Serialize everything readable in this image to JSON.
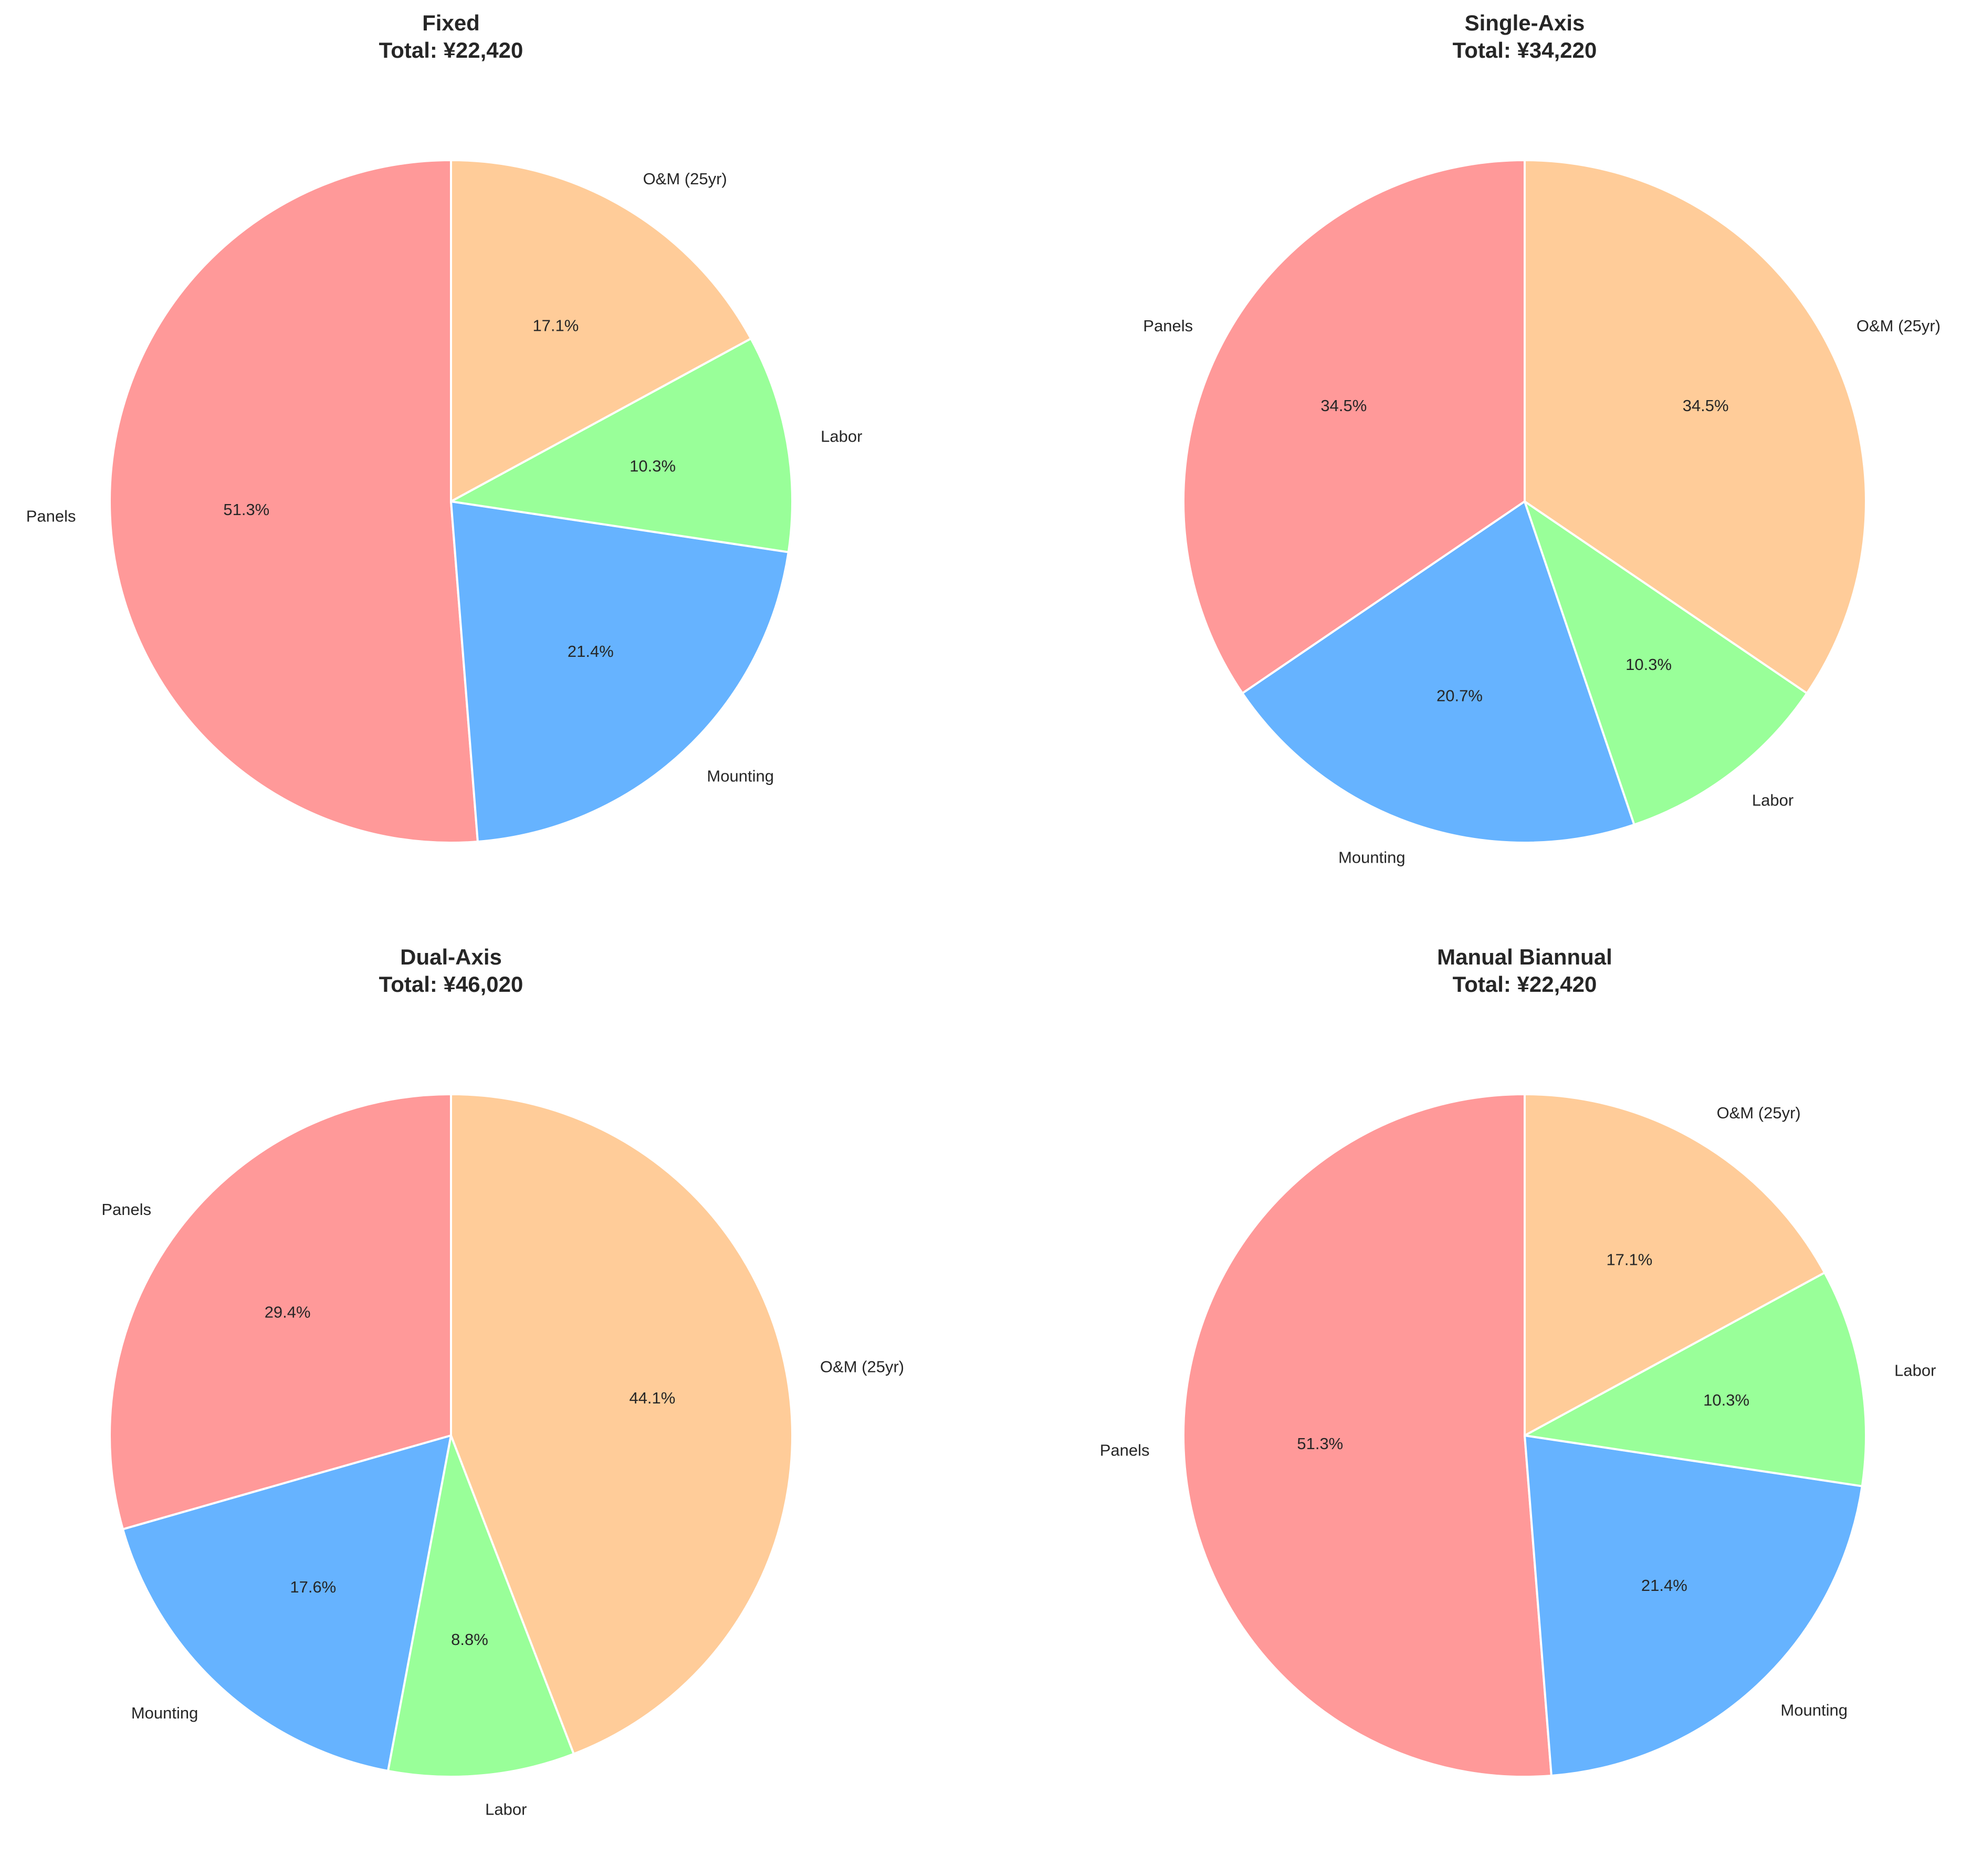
{
  "chart_data": [
    {
      "type": "pie",
      "title": "Fixed",
      "subtitle": "Total: ¥22,420",
      "categories": [
        "Panels",
        "Mounting",
        "Labor",
        "O&M (25yr)"
      ],
      "values": [
        51.3,
        21.4,
        10.3,
        17.1
      ],
      "value_labels": [
        "51.3%",
        "21.4%",
        "10.3%",
        "17.1%"
      ],
      "start_angle": 90,
      "direction": "counterclockwise"
    },
    {
      "type": "pie",
      "title": "Single-Axis",
      "subtitle": "Total: ¥34,220",
      "categories": [
        "Panels",
        "Mounting",
        "Labor",
        "O&M (25yr)"
      ],
      "values": [
        34.5,
        20.7,
        10.3,
        34.5
      ],
      "value_labels": [
        "34.5%",
        "20.7%",
        "10.3%",
        "34.5%"
      ],
      "start_angle": 90,
      "direction": "counterclockwise"
    },
    {
      "type": "pie",
      "title": "Dual-Axis",
      "subtitle": "Total: ¥46,020",
      "categories": [
        "Panels",
        "Mounting",
        "Labor",
        "O&M (25yr)"
      ],
      "values": [
        29.4,
        17.6,
        8.8,
        44.1
      ],
      "value_labels": [
        "29.4%",
        "17.6%",
        "8.8%",
        "44.1%"
      ],
      "start_angle": 90,
      "direction": "counterclockwise"
    },
    {
      "type": "pie",
      "title": "Manual Biannual",
      "subtitle": "Total: ¥22,420",
      "categories": [
        "Panels",
        "Mounting",
        "Labor",
        "O&M (25yr)"
      ],
      "values": [
        51.3,
        21.4,
        10.3,
        17.1
      ],
      "value_labels": [
        "51.3%",
        "21.4%",
        "10.3%",
        "17.1%"
      ],
      "start_angle": 90,
      "direction": "counterclockwise"
    }
  ],
  "colors": [
    "#ff9999",
    "#66b3ff",
    "#99ff99",
    "#ffcc99"
  ]
}
